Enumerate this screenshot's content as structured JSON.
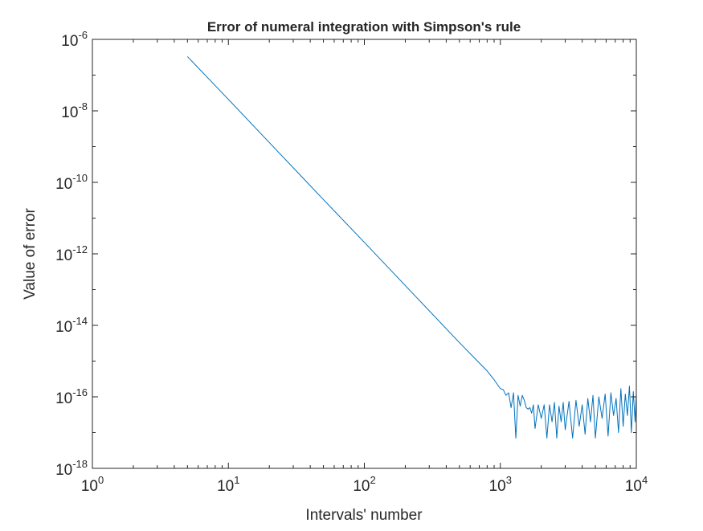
{
  "figure": {
    "background": "#ffffff",
    "axes_color": "#262626",
    "line_color": "#0072bd"
  },
  "chart_data": {
    "type": "line",
    "title": "Error of numeral integration with Simpson's rule",
    "xlabel": "Intervals' number",
    "ylabel": "Value of error",
    "xscale": "log",
    "yscale": "log",
    "xlim": [
      1,
      10000
    ],
    "ylim": [
      1e-18,
      1e-06
    ],
    "grid": false,
    "legend": false,
    "x_ticks": [
      {
        "value": 1,
        "base": "10",
        "exp": "0"
      },
      {
        "value": 10,
        "base": "10",
        "exp": "1"
      },
      {
        "value": 100,
        "base": "10",
        "exp": "2"
      },
      {
        "value": 1000,
        "base": "10",
        "exp": "3"
      },
      {
        "value": 10000,
        "base": "10",
        "exp": "4"
      }
    ],
    "y_ticks": [
      {
        "value": 1e-18,
        "base": "10",
        "exp": "-18"
      },
      {
        "value": 1e-16,
        "base": "10",
        "exp": "-16"
      },
      {
        "value": 1e-14,
        "base": "10",
        "exp": "-14"
      },
      {
        "value": 1e-12,
        "base": "10",
        "exp": "-12"
      },
      {
        "value": 1e-10,
        "base": "10",
        "exp": "-10"
      },
      {
        "value": 1e-08,
        "base": "10",
        "exp": "-8"
      },
      {
        "value": 1e-06,
        "base": "10",
        "exp": "-6"
      }
    ],
    "series": [
      {
        "x": [
          5,
          10,
          20,
          50,
          100,
          200,
          500,
          700,
          800,
          900,
          1000,
          1050,
          1100,
          1150,
          1200,
          1250,
          1300,
          1350,
          1400,
          1450,
          1500,
          1550,
          1600,
          1650,
          1700,
          1750,
          1800,
          1900,
          2000,
          2100,
          2200,
          2300,
          2400,
          2500,
          2600,
          2700,
          2800,
          2900,
          3000,
          3200,
          3400,
          3600,
          3800,
          4000,
          4200,
          4400,
          4600,
          4800,
          5000,
          5300,
          5600,
          5900,
          6200,
          6500,
          6800,
          7100,
          7400,
          7700,
          8000,
          8300,
          8600,
          8900,
          9200,
          9500,
          9800,
          10000
        ],
        "y": [
          3.3e-07,
          2.1e-08,
          1.3e-09,
          3.3e-11,
          2.1e-12,
          1.3e-13,
          3.3e-15,
          8.9e-16,
          5.3e-16,
          3e-16,
          1.7e-16,
          1.6e-16,
          1.1e-16,
          1.3e-16,
          5e-17,
          1.3e-16,
          7e-18,
          1.1e-16,
          5.5e-17,
          1.1e-16,
          8e-17,
          5e-17,
          4.5e-17,
          5e-17,
          3.5e-17,
          6e-17,
          1.3e-17,
          6e-17,
          2.5e-17,
          6e-17,
          7e-18,
          6e-17,
          2e-17,
          7e-17,
          7e-18,
          5.5e-17,
          2e-17,
          7e-17,
          1.2e-17,
          7.5e-17,
          7e-18,
          8e-17,
          1.5e-17,
          6e-17,
          9e-18,
          9e-17,
          2e-17,
          1.1e-16,
          7e-18,
          1e-16,
          2.5e-17,
          1.2e-16,
          8e-18,
          1.3e-16,
          3e-17,
          9e-17,
          1e-17,
          1.7e-16,
          1.5e-17,
          1.2e-16,
          3e-17,
          2e-16,
          1e-17,
          1.4e-16,
          2e-17,
          1.2e-16
        ]
      }
    ]
  }
}
